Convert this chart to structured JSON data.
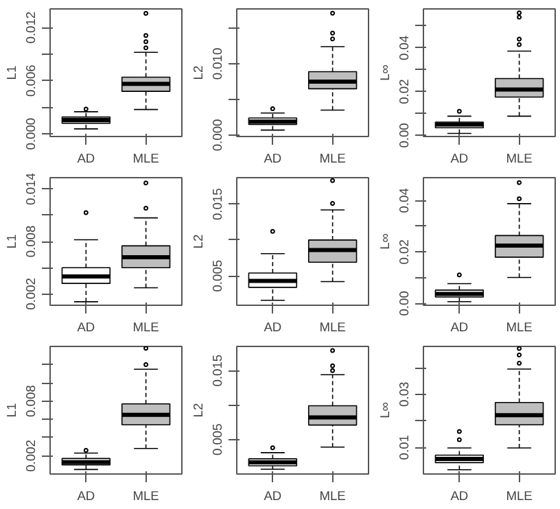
{
  "chart_data": [
    {
      "type": "box",
      "ylabel": "L1",
      "categories": [
        "AD",
        "MLE"
      ],
      "colors": [
        "#ffffff",
        "#bebebe"
      ],
      "grid": false,
      "ylim": [
        -0.0003,
        0.0141
      ],
      "yticks": [
        {
          "value": 0,
          "label": "0.000"
        },
        {
          "value": 0.003,
          "label": null
        },
        {
          "value": 0.006,
          "label": "0.006"
        },
        {
          "value": 0.009,
          "label": null
        },
        {
          "value": 0.012,
          "label": "0.012"
        }
      ],
      "boxes": [
        {
          "low": 0.00056,
          "q1": 0.0012,
          "median": 0.00155,
          "q3": 0.0019,
          "high": 0.0025,
          "outliers": [
            0.0028
          ]
        },
        {
          "low": 0.00275,
          "q1": 0.0048,
          "median": 0.00565,
          "q3": 0.0064,
          "high": 0.0092,
          "outliers": [
            0.0097,
            0.0104,
            0.0111,
            0.0136
          ]
        }
      ]
    },
    {
      "type": "box",
      "ylabel": "L2",
      "categories": [
        "AD",
        "MLE"
      ],
      "colors": [
        "#ffffff",
        "#bebebe"
      ],
      "grid": false,
      "ylim": [
        -0.0002,
        0.0177
      ],
      "yticks": [
        {
          "value": 0,
          "label": "0.000"
        },
        {
          "value": 0.005,
          "label": null
        },
        {
          "value": 0.01,
          "label": "0.010"
        },
        {
          "value": 0.015,
          "label": null
        }
      ],
      "boxes": [
        {
          "low": 0.0007,
          "q1": 0.0015,
          "median": 0.0019,
          "q3": 0.0024,
          "high": 0.0031,
          "outliers": [
            0.0037
          ]
        },
        {
          "low": 0.0035,
          "q1": 0.0065,
          "median": 0.0075,
          "q3": 0.0089,
          "high": 0.0124,
          "outliers": [
            0.0135,
            0.0143,
            0.0171
          ]
        }
      ]
    },
    {
      "type": "box",
      "ylabel": "L∞",
      "categories": [
        "AD",
        "MLE"
      ],
      "colors": [
        "#ffffff",
        "#bebebe"
      ],
      "grid": false,
      "ylim": [
        -0.0005,
        0.0578
      ],
      "yticks": [
        {
          "value": 0,
          "label": "0.00"
        },
        {
          "value": 0.01,
          "label": null
        },
        {
          "value": 0.02,
          "label": "0.02"
        },
        {
          "value": 0.03,
          "label": null
        },
        {
          "value": 0.04,
          "label": "0.04"
        },
        {
          "value": 0.05,
          "label": null
        }
      ],
      "boxes": [
        {
          "low": 0.0009,
          "q1": 0.0035,
          "median": 0.005,
          "q3": 0.0061,
          "high": 0.0088,
          "outliers": [
            0.011
          ]
        },
        {
          "low": 0.0088,
          "q1": 0.0175,
          "median": 0.021,
          "q3": 0.026,
          "high": 0.0385,
          "outliers": [
            0.0415,
            0.044,
            0.054,
            0.056
          ]
        }
      ]
    },
    {
      "type": "box",
      "ylabel": "L1",
      "categories": [
        "AD",
        "MLE"
      ],
      "colors": [
        "#ffffff",
        "#bebebe"
      ],
      "grid": false,
      "ylim": [
        0.0007,
        0.0153
      ],
      "yticks": [
        {
          "value": 0.002,
          "label": "0.002"
        },
        {
          "value": 0.005,
          "label": null
        },
        {
          "value": 0.008,
          "label": "0.008"
        },
        {
          "value": 0.011,
          "label": null
        },
        {
          "value": 0.014,
          "label": "0.014"
        }
      ],
      "boxes": [
        {
          "low": 0.0011,
          "q1": 0.0032,
          "median": 0.004,
          "q3": 0.005,
          "high": 0.0082,
          "outliers": [
            0.0113
          ]
        },
        {
          "low": 0.0027,
          "q1": 0.005,
          "median": 0.0062,
          "q3": 0.0075,
          "high": 0.0107,
          "outliers": [
            0.0118,
            0.0147
          ]
        }
      ]
    },
    {
      "type": "box",
      "ylabel": "L2",
      "categories": [
        "AD",
        "MLE"
      ],
      "colors": [
        "#ffffff",
        "#bebebe"
      ],
      "grid": false,
      "ylim": [
        0.0009,
        0.0187
      ],
      "yticks": [
        {
          "value": 0.005,
          "label": "0.005"
        },
        {
          "value": 0.01,
          "label": null
        },
        {
          "value": 0.015,
          "label": "0.015"
        }
      ],
      "boxes": [
        {
          "low": 0.0016,
          "q1": 0.0034,
          "median": 0.0043,
          "q3": 0.0054,
          "high": 0.0081,
          "outliers": [
            0.0112
          ]
        },
        {
          "low": 0.0042,
          "q1": 0.0069,
          "median": 0.0086,
          "q3": 0.01,
          "high": 0.0142,
          "outliers": [
            0.0151,
            0.0183
          ]
        }
      ]
    },
    {
      "type": "box",
      "ylabel": "L∞",
      "categories": [
        "AD",
        "MLE"
      ],
      "colors": [
        "#ffffff",
        "#bebebe"
      ],
      "grid": false,
      "ylim": [
        -0.0007,
        0.0489
      ],
      "yticks": [
        {
          "value": 0,
          "label": "0.00"
        },
        {
          "value": 0.01,
          "label": null
        },
        {
          "value": 0.02,
          "label": "0.02"
        },
        {
          "value": 0.03,
          "label": null
        },
        {
          "value": 0.04,
          "label": "0.04"
        }
      ],
      "boxes": [
        {
          "low": 0.0007,
          "q1": 0.0025,
          "median": 0.0037,
          "q3": 0.0052,
          "high": 0.0077,
          "outliers": [
            0.0111
          ]
        },
        {
          "low": 0.0101,
          "q1": 0.018,
          "median": 0.0225,
          "q3": 0.0264,
          "high": 0.0388,
          "outliers": [
            0.0407,
            0.047
          ]
        }
      ]
    },
    {
      "type": "box",
      "ylabel": "L1",
      "categories": [
        "AD",
        "MLE"
      ],
      "colors": [
        "#ffffff",
        "#bebebe"
      ],
      "grid": false,
      "ylim": [
        0,
        0.014
      ],
      "yticks": [
        {
          "value": 0.002,
          "label": "0.002"
        },
        {
          "value": 0.004,
          "label": null
        },
        {
          "value": 0.006,
          "label": null
        },
        {
          "value": 0.008,
          "label": "0.008"
        },
        {
          "value": 0.01,
          "label": null
        },
        {
          "value": 0.012,
          "label": null
        }
      ],
      "boxes": [
        {
          "low": 0.0005,
          "q1": 0.001,
          "median": 0.0013,
          "q3": 0.0017,
          "high": 0.0023,
          "outliers": [
            0.0026
          ]
        },
        {
          "low": 0.0028,
          "q1": 0.0054,
          "median": 0.0065,
          "q3": 0.0077,
          "high": 0.0115,
          "outliers": [
            0.012,
            0.0138
          ]
        }
      ]
    },
    {
      "type": "box",
      "ylabel": "L2",
      "categories": [
        "AD",
        "MLE"
      ],
      "colors": [
        "#ffffff",
        "#bebebe"
      ],
      "grid": false,
      "ylim": [
        0,
        0.0185
      ],
      "yticks": [
        {
          "value": 0.005,
          "label": "0.005"
        },
        {
          "value": 0.01,
          "label": null
        },
        {
          "value": 0.015,
          "label": "0.015"
        }
      ],
      "boxes": [
        {
          "low": 0.0007,
          "q1": 0.0012,
          "median": 0.0017,
          "q3": 0.0022,
          "high": 0.0031,
          "outliers": [
            0.0038
          ]
        },
        {
          "low": 0.0039,
          "q1": 0.0071,
          "median": 0.0082,
          "q3": 0.0099,
          "high": 0.0144,
          "outliers": [
            0.015,
            0.0157,
            0.0179
          ]
        }
      ]
    },
    {
      "type": "box",
      "ylabel": "L∞",
      "categories": [
        "AD",
        "MLE"
      ],
      "colors": [
        "#ffffff",
        "#bebebe"
      ],
      "grid": false,
      "ylim": [
        0,
        0.048
      ],
      "yticks": [
        {
          "value": 0.01,
          "label": "0.01"
        },
        {
          "value": 0.02,
          "label": null
        },
        {
          "value": 0.03,
          "label": "0.03"
        },
        {
          "value": 0.04,
          "label": null
        }
      ],
      "boxes": [
        {
          "low": 0.0016,
          "q1": 0.0043,
          "median": 0.0057,
          "q3": 0.0071,
          "high": 0.0098,
          "outliers": [
            0.0129,
            0.016
          ]
        },
        {
          "low": 0.0098,
          "q1": 0.0185,
          "median": 0.0221,
          "q3": 0.0269,
          "high": 0.0395,
          "outliers": [
            0.0417,
            0.0448,
            0.0472
          ]
        }
      ]
    }
  ]
}
